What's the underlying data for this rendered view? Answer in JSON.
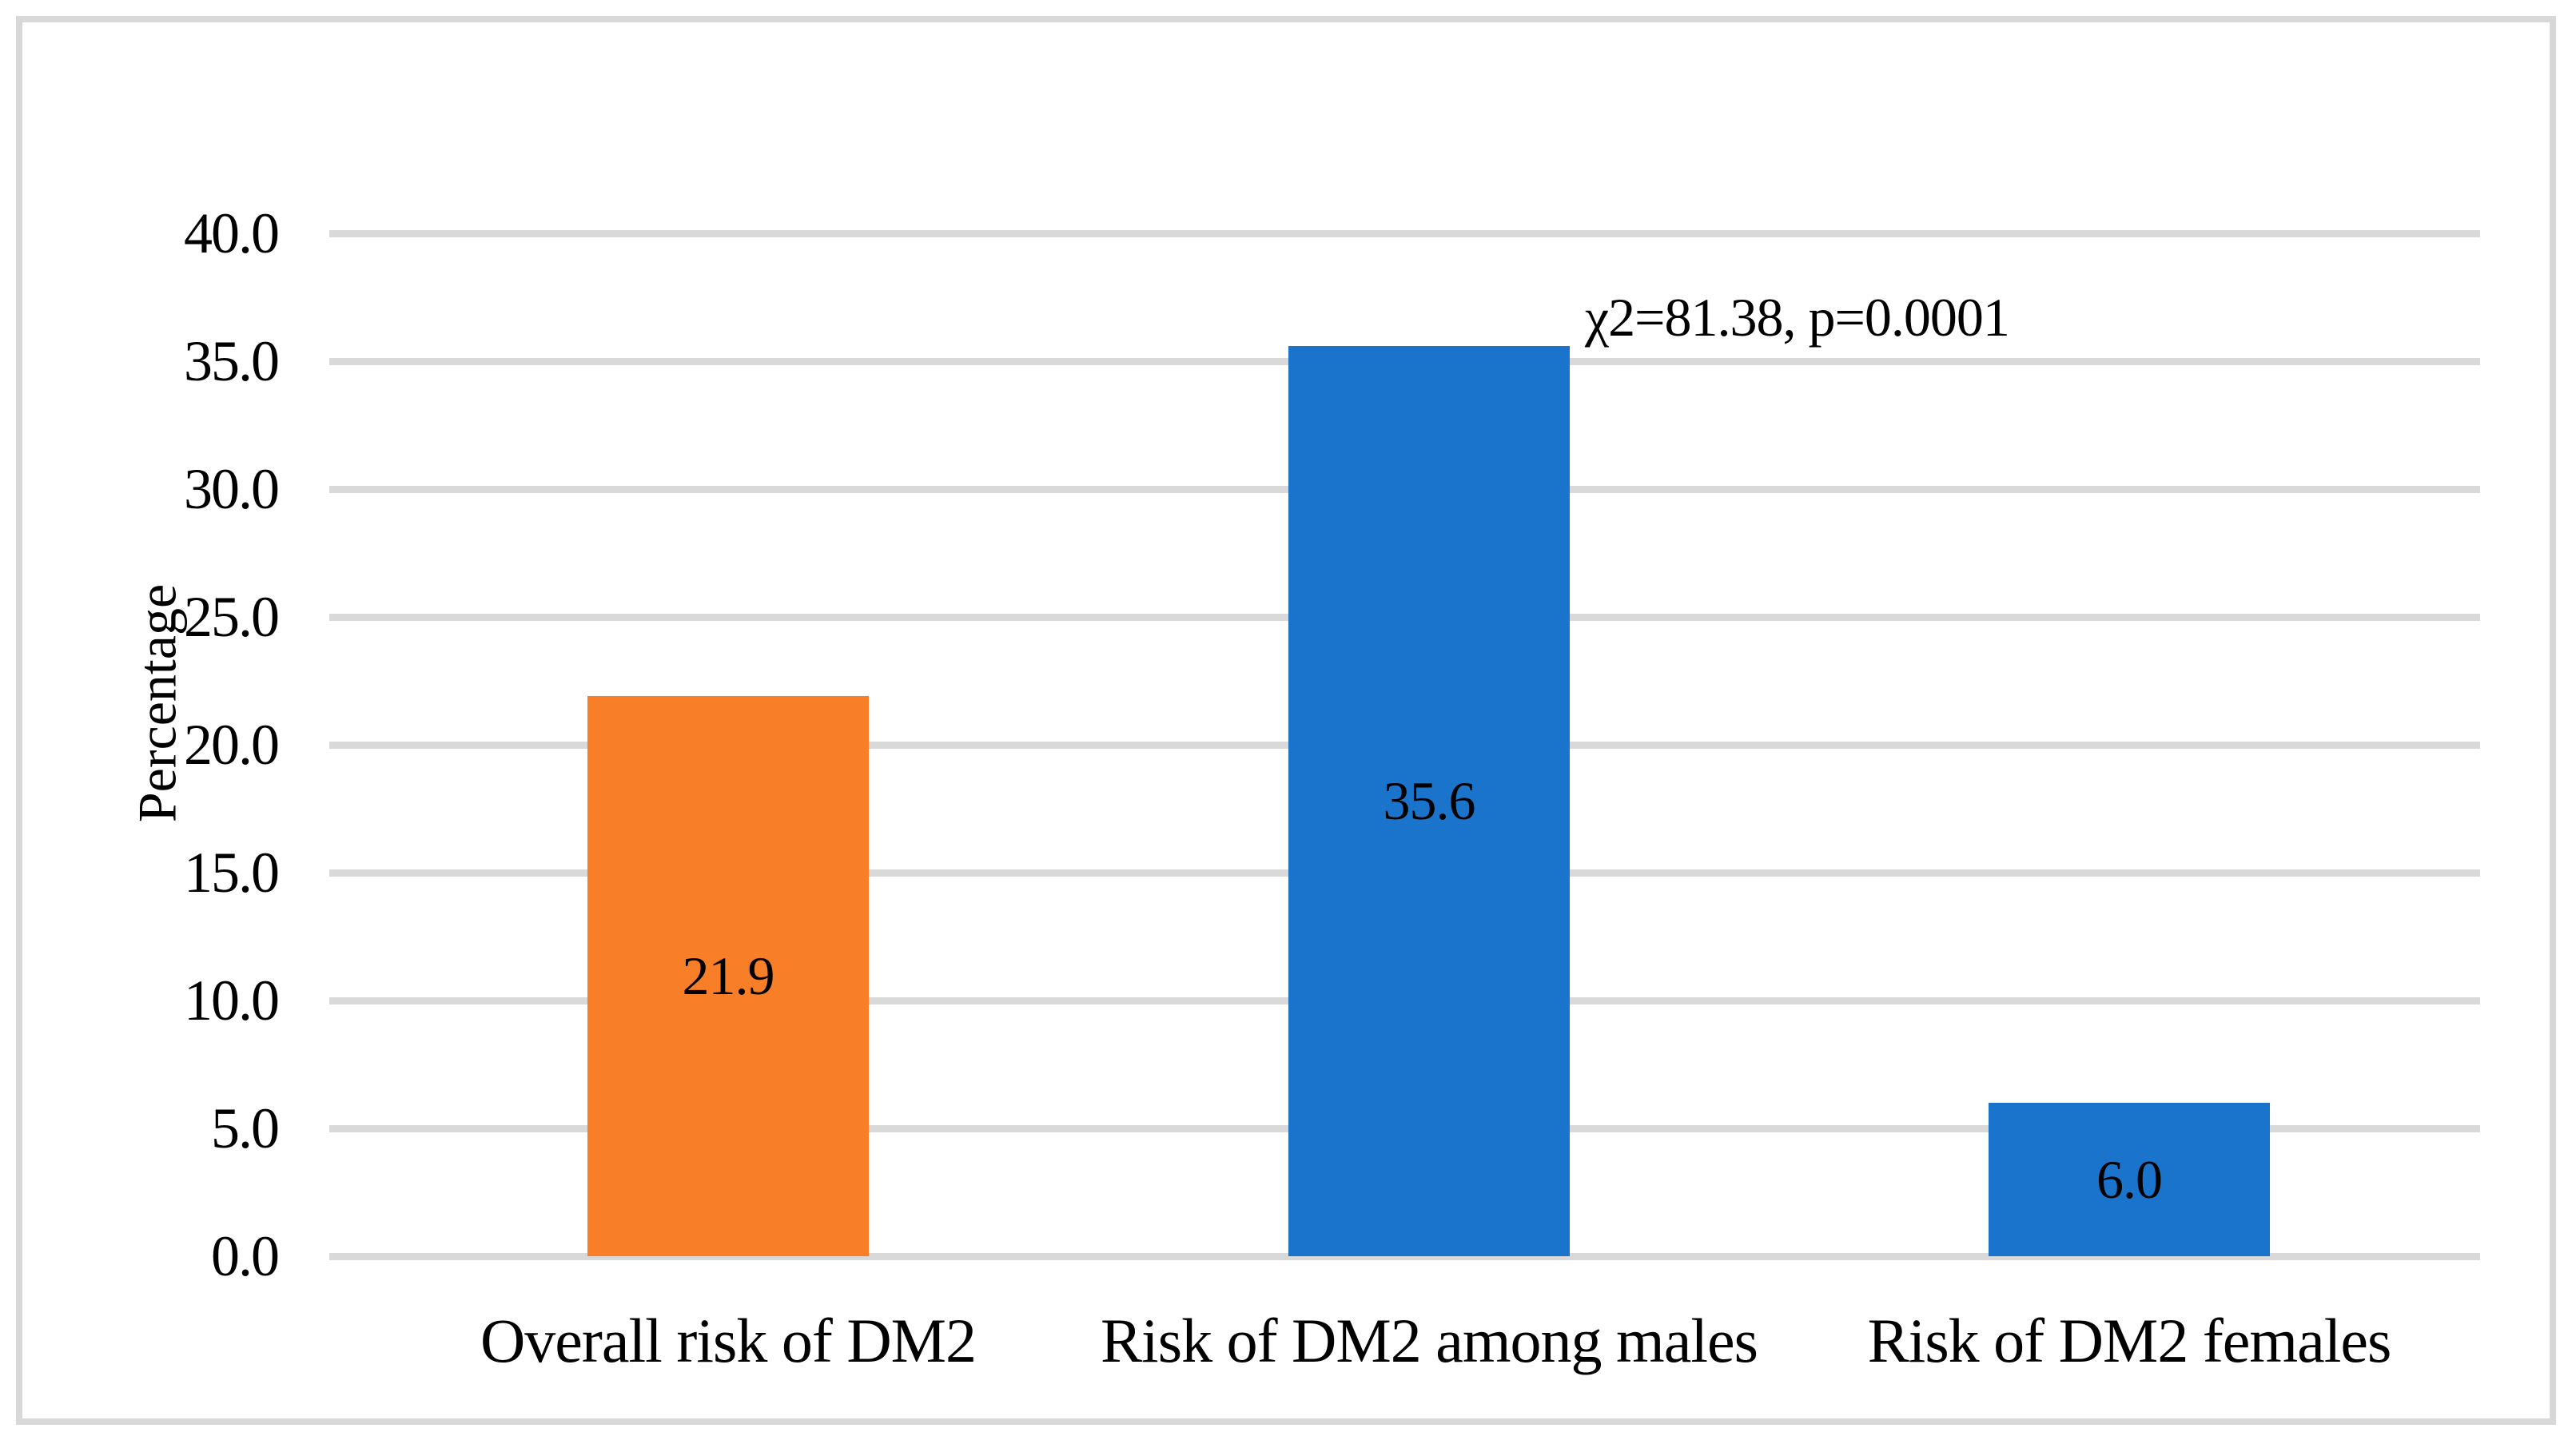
{
  "figure": {
    "background": "#ffffff",
    "border_color": "#d8d8d8"
  },
  "chart_data": {
    "type": "bar",
    "title": "",
    "xlabel": "",
    "ylabel": "Percentage",
    "categories": [
      "Overall risk of DM2",
      "Risk of DM2 among males",
      "Risk of DM2 females"
    ],
    "values": [
      21.9,
      35.6,
      6.0
    ],
    "data_labels": [
      "21.9",
      "35.6",
      "6.0"
    ],
    "bar_colors": [
      "#f97e28",
      "#1b74cb",
      "#1b74cb"
    ],
    "ylim": [
      0.0,
      40.0
    ],
    "ytick_step": 5.0,
    "ytick_labels": [
      "40.0",
      "35.0",
      "30.0",
      "25.0",
      "20.0",
      "15.0",
      "10.0",
      "5.0",
      "0.0"
    ],
    "grid": "horizontal",
    "gridline_color": "#d9d9d9",
    "legend_position": "none",
    "annotation": "χ2=81.38, p=0.0001"
  }
}
